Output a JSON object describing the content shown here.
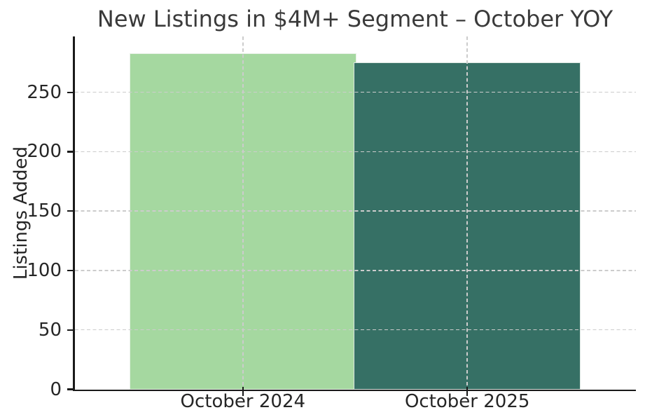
{
  "chart_data": {
    "type": "bar",
    "title": "New Listings in $4M+ Segment – October YOY",
    "xlabel": "",
    "ylabel": "Listings Added",
    "categories": [
      "October 2024",
      "October 2025"
    ],
    "values": [
      283,
      275
    ],
    "bar_colors": [
      "#a5d8a0",
      "#367065"
    ],
    "yticks": [
      0,
      50,
      100,
      150,
      200,
      250
    ],
    "ylim": [
      0,
      297
    ],
    "grid": "dashed gridlines on both axes, drawn above bars",
    "legend": "none",
    "background_color": "#ffffff",
    "spine_color": "#1a1a1a",
    "gridline_color": "#cccccc",
    "text_color": "#262626",
    "title_color": "#3a3a3a"
  }
}
